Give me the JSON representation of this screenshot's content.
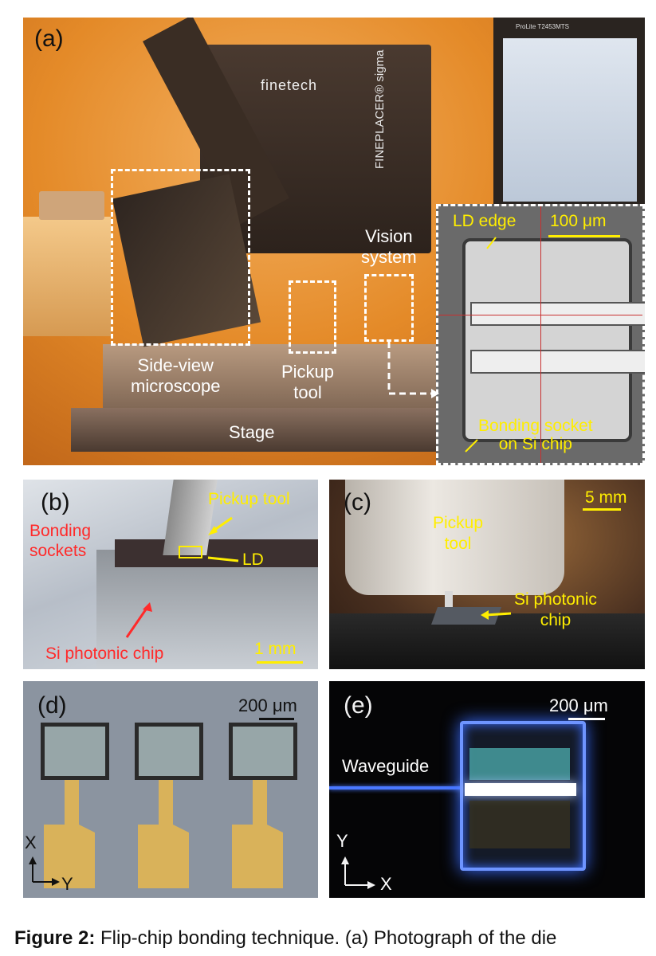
{
  "panels": {
    "a": {
      "label": "(a)",
      "brand": "finetech",
      "model": "FINEPLACER® sigma",
      "monitor_brand": "ProLite T2453MTS",
      "side_view": "Side-view\nmicroscope",
      "vision": "Vision\nsystem",
      "pickup": "Pickup\ntool",
      "stage": "Stage",
      "inset": {
        "ld_edge": "LD edge",
        "scale": "100 μm",
        "socket": "Bonding socket\non Si chip"
      }
    },
    "b": {
      "label": "(b)",
      "pickup": "Pickup tool",
      "sockets": "Bonding\nsockets",
      "ld": "LD",
      "chip": "Si photonic chip",
      "scale": "1 mm"
    },
    "c": {
      "label": "(c)",
      "scale": "5 mm",
      "pickup": "Pickup\ntool",
      "chip": "Si photonic\nchip"
    },
    "d": {
      "label": "(d)",
      "scale": "200 μm",
      "axis_x": "X",
      "axis_y": "Y"
    },
    "e": {
      "label": "(e)",
      "scale": "200 μm",
      "waveguide": "Waveguide",
      "axis_x": "X",
      "axis_y": "Y"
    }
  },
  "caption": {
    "bold": "Figure 2:",
    "text": " Flip-chip bonding technique. (a) Photograph of the die"
  },
  "colors": {
    "yellow_annotation": "#ffee00",
    "red_annotation": "#ff2a2a",
    "orange_lab": "#e8851e",
    "blue_glow": "#3a6cff"
  }
}
